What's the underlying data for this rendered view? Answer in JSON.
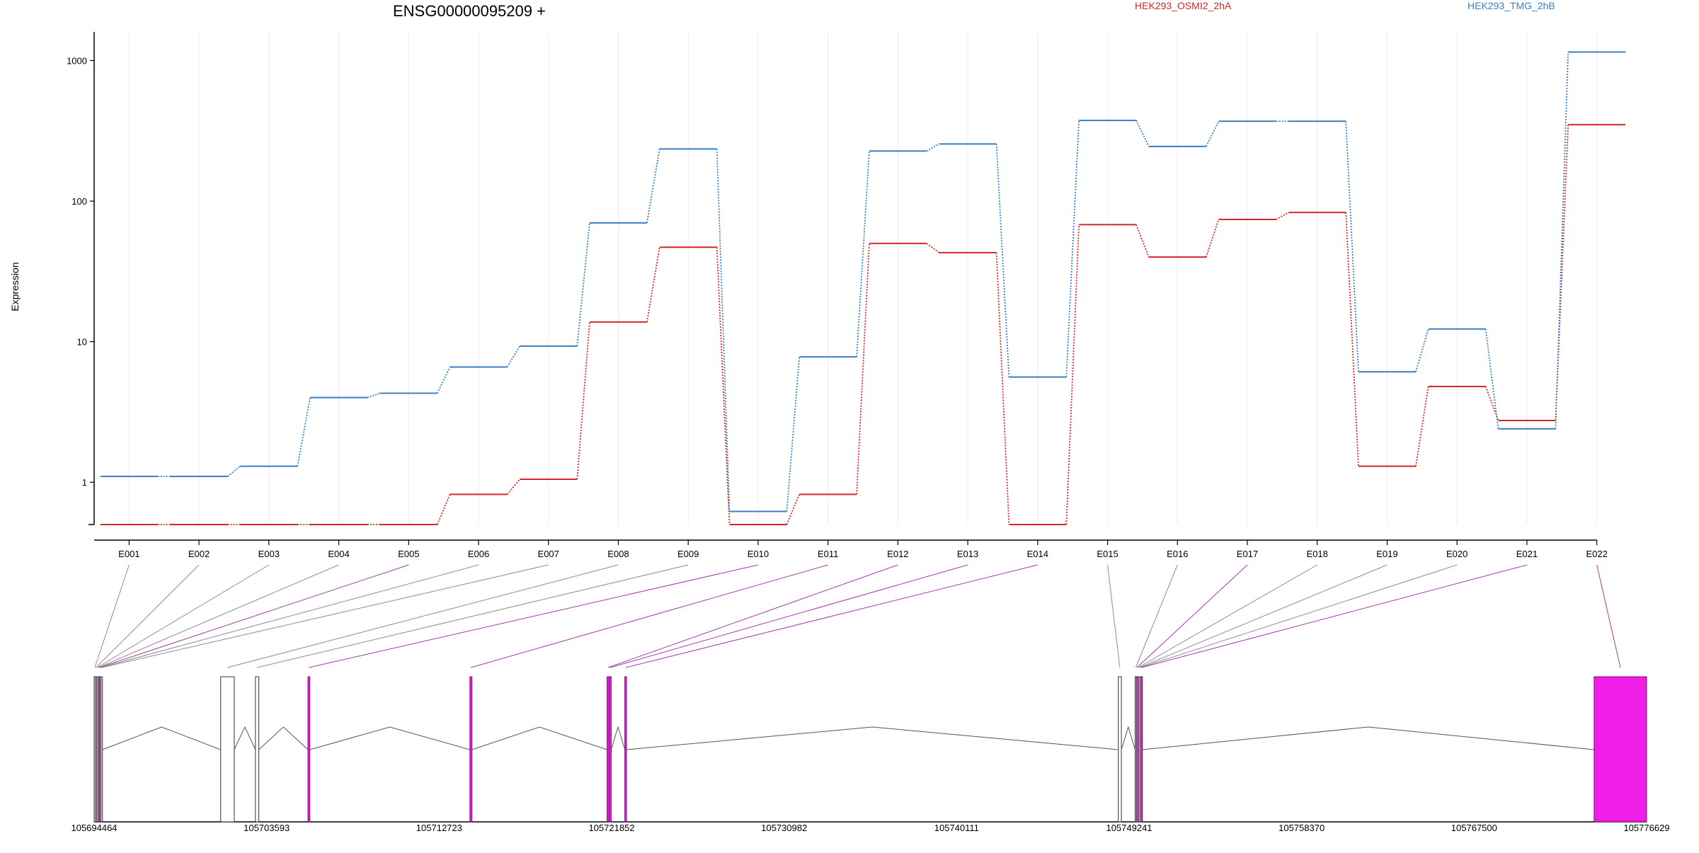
{
  "chart_data": {
    "type": "line",
    "title": "ENSG00000095209 +",
    "ylabel": "Expression",
    "y_scale": "log",
    "y_ticks": [
      "1",
      "10",
      "100",
      "1000"
    ],
    "ylim": [
      0.5,
      1600
    ],
    "grid": "vertical",
    "legend_placement": "top",
    "categories": [
      "E001",
      "E002",
      "E003",
      "E004",
      "E005",
      "E006",
      "E007",
      "E008",
      "E009",
      "E010",
      "E011",
      "E012",
      "E013",
      "E014",
      "E015",
      "E016",
      "E017",
      "E018",
      "E019",
      "E020",
      "E021",
      "E022"
    ],
    "series": [
      {
        "name": "HEK293_OSMI2_2hA",
        "color": "#d62728",
        "values": [
          0.5,
          0.5,
          0.5,
          0.5,
          0.5,
          0.82,
          1.05,
          13.8,
          47,
          0.5,
          0.82,
          50,
          43,
          0.5,
          68,
          40,
          74,
          83,
          1.3,
          4.8,
          2.75,
          350
        ]
      },
      {
        "name": "HEK293_TMG_2hB",
        "color": "#3a7fc4",
        "values": [
          1.1,
          1.1,
          1.3,
          4.0,
          4.3,
          6.6,
          9.3,
          70,
          235,
          0.62,
          7.8,
          227,
          255,
          5.6,
          375,
          245,
          370,
          370,
          6.1,
          12.3,
          2.4,
          1150
        ]
      }
    ],
    "genome": {
      "tick_labels": [
        "105694464",
        "105703593",
        "105712723",
        "105721852",
        "105730982",
        "105740111",
        "105749241",
        "105758370",
        "105767500",
        "105776629"
      ],
      "start": 105694464,
      "end": 105776629,
      "highlight_color": "#ee1ee6",
      "connector_color_normal": "#8c8c8c",
      "connector_color_highlight": "#a43aa8",
      "exons": [
        {
          "id": "E001",
          "start": 105694464,
          "end": 105694530,
          "highlight": false
        },
        {
          "id": "E002",
          "start": 105694530,
          "end": 105694590,
          "highlight": false
        },
        {
          "id": "E003",
          "start": 105694590,
          "end": 105694650,
          "highlight": false
        },
        {
          "id": "E004",
          "start": 105694650,
          "end": 105694710,
          "highlight": false
        },
        {
          "id": "E005",
          "start": 105694710,
          "end": 105694770,
          "highlight": true
        },
        {
          "id": "E006",
          "start": 105694770,
          "end": 105694830,
          "highlight": false
        },
        {
          "id": "E007",
          "start": 105694830,
          "end": 105694890,
          "highlight": false
        },
        {
          "id": "E008",
          "start": 105701160,
          "end": 105701880,
          "highlight": false
        },
        {
          "id": "E009",
          "start": 105703000,
          "end": 105703180,
          "highlight": false
        },
        {
          "id": "E010",
          "start": 105705780,
          "end": 105705880,
          "highlight": true
        },
        {
          "id": "E011",
          "start": 105714350,
          "end": 105714460,
          "highlight": true
        },
        {
          "id": "E012",
          "start": 105721610,
          "end": 105721720,
          "highlight": true
        },
        {
          "id": "E013",
          "start": 105721720,
          "end": 105721830,
          "highlight": true
        },
        {
          "id": "E014",
          "start": 105722550,
          "end": 105722640,
          "highlight": true
        },
        {
          "id": "E015",
          "start": 105748670,
          "end": 105748830,
          "highlight": false
        },
        {
          "id": "E016",
          "start": 105749560,
          "end": 105749620,
          "highlight": false
        },
        {
          "id": "E017",
          "start": 105749620,
          "end": 105749690,
          "highlight": true
        },
        {
          "id": "E018",
          "start": 105749690,
          "end": 105749750,
          "highlight": false
        },
        {
          "id": "E019",
          "start": 105749750,
          "end": 105749810,
          "highlight": false
        },
        {
          "id": "E020",
          "start": 105749810,
          "end": 105749870,
          "highlight": false
        },
        {
          "id": "E021",
          "start": 105749870,
          "end": 105749930,
          "highlight": true
        },
        {
          "id": "E022",
          "start": 105773850,
          "end": 105776629,
          "highlight": true
        }
      ]
    }
  }
}
